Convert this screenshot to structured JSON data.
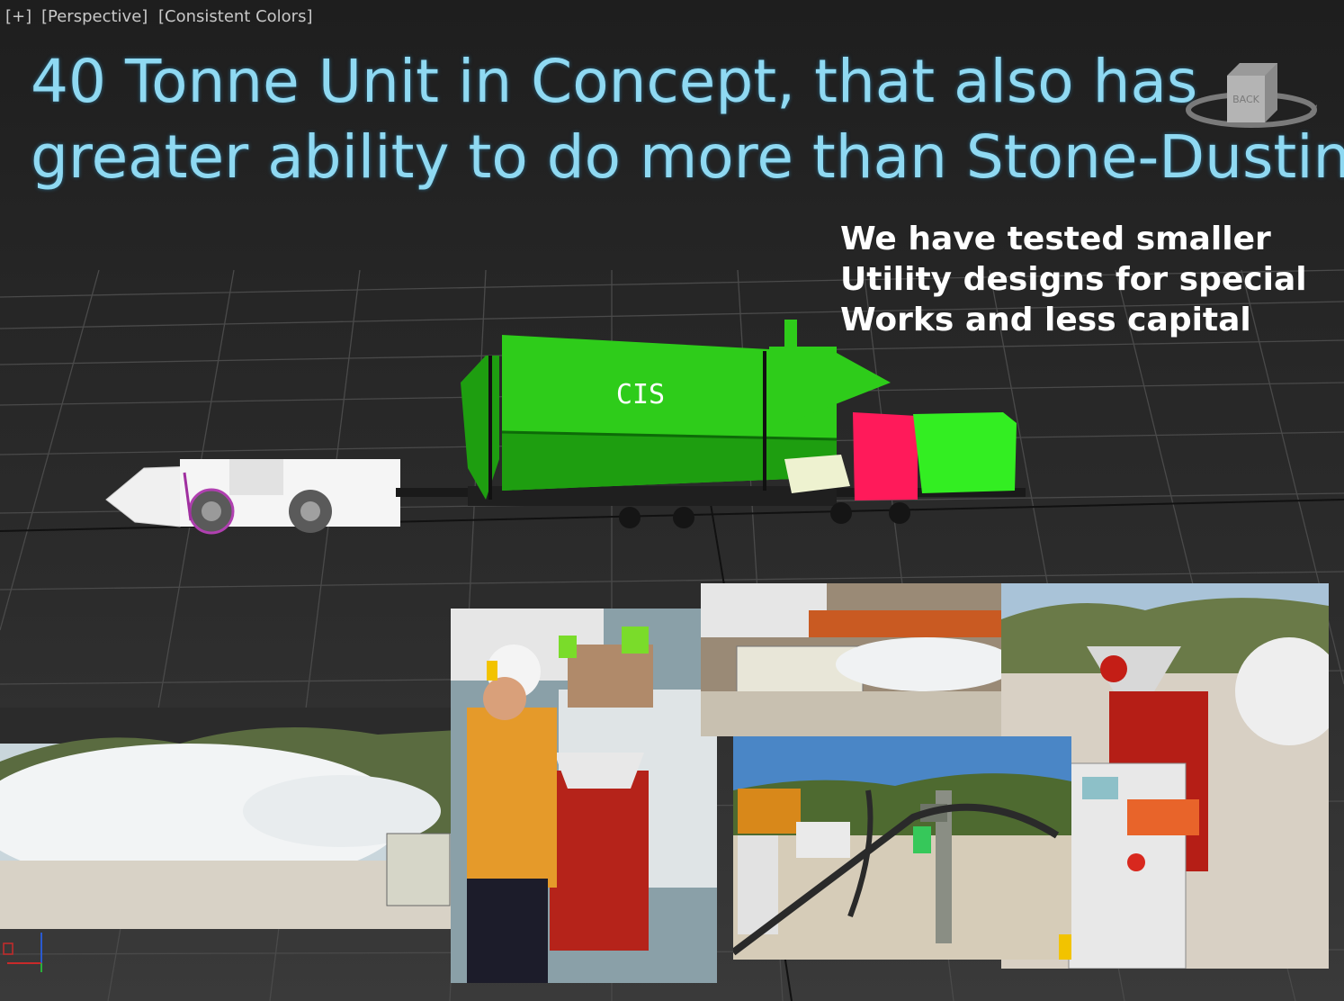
{
  "viewport": {
    "labels": {
      "plus": "[+]",
      "view": "[Perspective]",
      "shading": "[Consistent Colors]"
    },
    "viewcube_label": "BACK"
  },
  "slide": {
    "title_lines": [
      "40 Tonne Unit in Concept, that also has",
      "greater ability to do more than Stone-Dusting"
    ],
    "note_lines": [
      "We have tested smaller",
      "Utility designs for special",
      "Works and less capital"
    ]
  },
  "model": {
    "tank_label": "CIS",
    "colors": {
      "tank": "#2ecc1a",
      "tank_dark": "#1e9e10",
      "red_box": "#ff1a5a",
      "green_box": "#33ee22",
      "cream_box": "#eef2d0",
      "loader": "#f2f2f2"
    }
  },
  "icons": {
    "viewcube": "viewcube-icon",
    "axis": "axis-tripod-icon"
  }
}
